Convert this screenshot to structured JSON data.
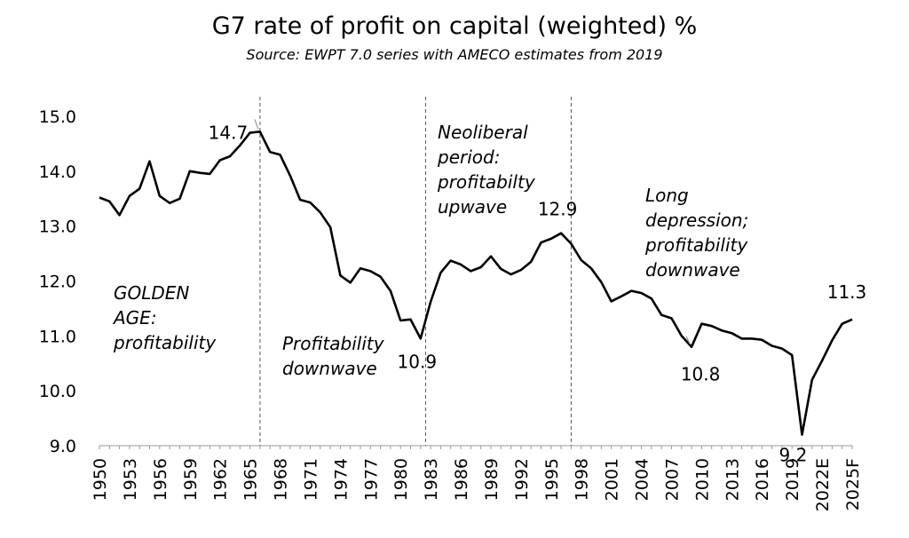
{
  "chart_data": {
    "type": "line",
    "title": "G7 rate of profit on capital (weighted) %",
    "subtitle": "Source: EWPT 7.0 series with AMECO estimates from 2019",
    "xlabel": "",
    "ylabel": "",
    "ylim": [
      9.0,
      15.0
    ],
    "yticks": [
      "9.0",
      "10.0",
      "11.0",
      "12.0",
      "13.0",
      "14.0",
      "15.0"
    ],
    "xtick_labels": [
      "1950",
      "1953",
      "1956",
      "1959",
      "1962",
      "1965",
      "1968",
      "1971",
      "1974",
      "1977",
      "1980",
      "1983",
      "1986",
      "1989",
      "1992",
      "1995",
      "1998",
      "2001",
      "2004",
      "2007",
      "2010",
      "2013",
      "2016",
      "2019",
      "2022E",
      "2025F"
    ],
    "grid": false,
    "line_color": "#000000",
    "series": [
      {
        "x": [
          1950,
          1951,
          1952,
          1953,
          1954,
          1955,
          1956,
          1957,
          1958,
          1959,
          1960,
          1961,
          1962,
          1963,
          1964,
          1965,
          1966,
          1967,
          1968,
          1969,
          1970,
          1971,
          1972,
          1973,
          1974,
          1975,
          1976,
          1977,
          1978,
          1979,
          1980,
          1981,
          1982,
          1983,
          1984,
          1985,
          1986,
          1987,
          1988,
          1989,
          1990,
          1991,
          1992,
          1993,
          1994,
          1995,
          1996,
          1997,
          1998,
          1999,
          2000,
          2001,
          2002,
          2003,
          2004,
          2005,
          2006,
          2007,
          2008,
          2009,
          2010,
          2011,
          2012,
          2013,
          2014,
          2015,
          2016,
          2017,
          2018,
          2019,
          2020,
          2021,
          2022,
          2023,
          2024,
          2025
        ],
        "values": [
          13.52,
          13.45,
          13.2,
          13.55,
          13.68,
          14.18,
          13.55,
          13.42,
          13.5,
          14.0,
          13.97,
          13.95,
          14.2,
          14.27,
          14.47,
          14.7,
          14.72,
          14.35,
          14.3,
          13.92,
          13.48,
          13.43,
          13.25,
          12.98,
          12.1,
          11.97,
          12.23,
          12.18,
          12.08,
          11.82,
          11.28,
          11.3,
          10.95,
          11.62,
          12.15,
          12.37,
          12.3,
          12.18,
          12.25,
          12.45,
          12.22,
          12.12,
          12.2,
          12.35,
          12.7,
          12.77,
          12.87,
          12.68,
          12.38,
          12.23,
          11.98,
          11.63,
          11.72,
          11.82,
          11.78,
          11.68,
          11.38,
          11.32,
          11.0,
          10.8,
          11.22,
          11.18,
          11.1,
          11.05,
          10.95,
          10.95,
          10.93,
          10.82,
          10.77,
          10.65,
          9.2,
          10.2,
          10.55,
          10.92,
          11.22,
          11.3
        ]
      }
    ],
    "vlines": [
      1966,
      1982.5,
      1997
    ],
    "annotations": [
      {
        "lines": [
          "GOLDEN",
          "AGE:",
          "profitability"
        ]
      },
      {
        "lines": [
          "Profitability",
          "downwave"
        ]
      },
      {
        "lines": [
          "Neoliberal",
          "period:",
          "profitabilty",
          "upwave"
        ]
      },
      {
        "lines": [
          "Long",
          "depression;",
          "profitability",
          "downwave"
        ]
      }
    ],
    "data_labels": [
      {
        "x": 1966,
        "y": 14.72,
        "text": "14.7"
      },
      {
        "x": 1982,
        "y": 10.95,
        "text": "10.9"
      },
      {
        "x": 1996,
        "y": 12.87,
        "text": "12.9"
      },
      {
        "x": 2009,
        "y": 10.8,
        "text": "10.8"
      },
      {
        "x": 2020,
        "y": 9.2,
        "text": "9.2"
      },
      {
        "x": 2025,
        "y": 11.3,
        "text": "11.3"
      }
    ]
  }
}
